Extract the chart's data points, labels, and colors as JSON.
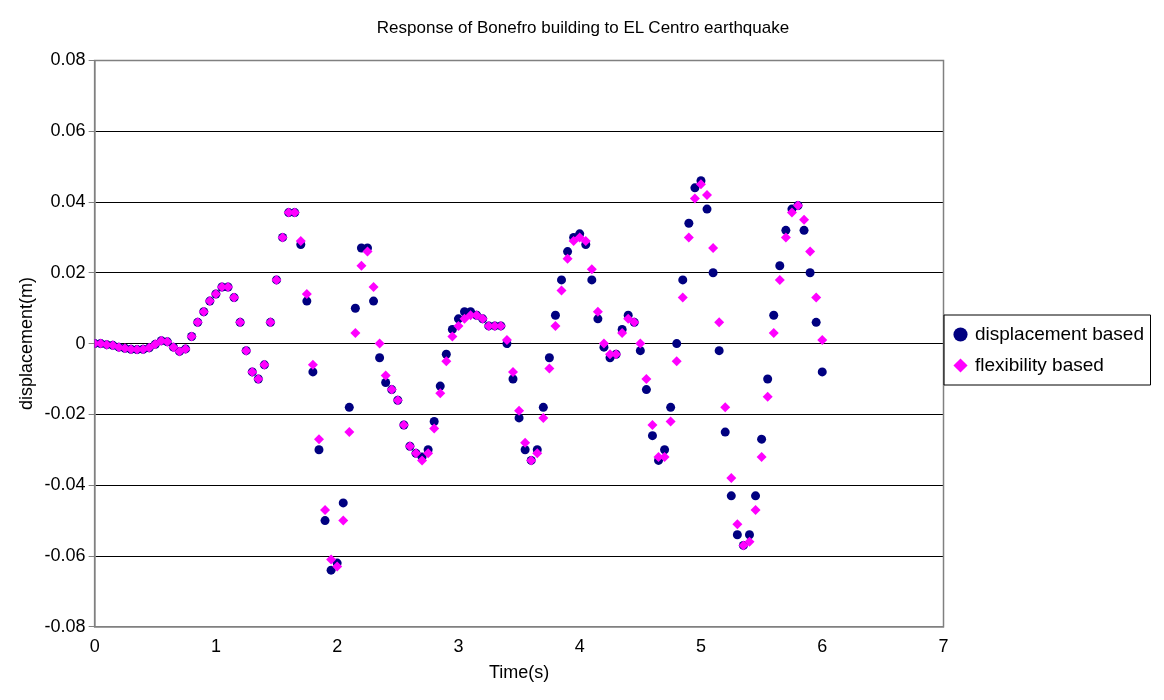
{
  "chart_data": {
    "type": "scatter",
    "title": "Response of Bonefro building to EL Centro earthquake",
    "xlabel": "Time(s)",
    "ylabel": "displacement(m)",
    "x": [
      0,
      0.05,
      0.1,
      0.15,
      0.2,
      0.25,
      0.3,
      0.35,
      0.4,
      0.45,
      0.5,
      0.55,
      0.6,
      0.65,
      0.7,
      0.75,
      0.8,
      0.85,
      0.9,
      0.95,
      1,
      1.05,
      1.1,
      1.15,
      1.2,
      1.25,
      1.3,
      1.35,
      1.4,
      1.45,
      1.5,
      1.55,
      1.6,
      1.65,
      1.7,
      1.75,
      1.8,
      1.85,
      1.9,
      1.95,
      2,
      2.05,
      2.1,
      2.15,
      2.2,
      2.25,
      2.3,
      2.35,
      2.4,
      2.45,
      2.5,
      2.55,
      2.6,
      2.65,
      2.7,
      2.75,
      2.8,
      2.85,
      2.9,
      2.95,
      3,
      3.05,
      3.1,
      3.15,
      3.2,
      3.25,
      3.3,
      3.35,
      3.4,
      3.45,
      3.5,
      3.55,
      3.6,
      3.65,
      3.7,
      3.75,
      3.8,
      3.85,
      3.9,
      3.95,
      4,
      4.05,
      4.1,
      4.15,
      4.2,
      4.25,
      4.3,
      4.35,
      4.4,
      4.45,
      4.5,
      4.55,
      4.6,
      4.65,
      4.7,
      4.75,
      4.8,
      4.85,
      4.9,
      4.95,
      5,
      5.05,
      5.1,
      5.15,
      5.2,
      5.25,
      5.3,
      5.35,
      5.4,
      5.45,
      5.5,
      5.55,
      5.6,
      5.65,
      5.7,
      5.75,
      5.8,
      5.85,
      5.9,
      5.95,
      6
    ],
    "series": [
      {
        "name": "displacement based",
        "color": "#000080",
        "marker": "circle",
        "values": [
          0,
          0,
          -0.0003,
          -0.0005,
          -0.001,
          -0.0013,
          -0.0016,
          -0.0017,
          -0.0016,
          -0.0012,
          -0.0002,
          0.0008,
          0.0005,
          -0.001,
          -0.0022,
          -0.0015,
          0.002,
          0.006,
          0.009,
          0.012,
          0.014,
          0.016,
          0.016,
          0.013,
          0.006,
          -0.002,
          -0.008,
          -0.01,
          -0.006,
          0.006,
          0.018,
          0.03,
          0.037,
          0.037,
          0.028,
          0.012,
          -0.008,
          -0.03,
          -0.05,
          -0.064,
          -0.062,
          -0.045,
          -0.018,
          0.01,
          0.027,
          0.027,
          0.012,
          -0.004,
          -0.011,
          -0.013,
          -0.016,
          -0.023,
          -0.029,
          -0.031,
          -0.032,
          -0.03,
          -0.022,
          -0.012,
          -0.003,
          0.004,
          0.007,
          0.009,
          0.009,
          0.008,
          0.007,
          0.005,
          0.005,
          0.005,
          0,
          -0.01,
          -0.021,
          -0.03,
          -0.033,
          -0.03,
          -0.018,
          -0.004,
          0.008,
          0.018,
          0.026,
          0.03,
          0.031,
          0.028,
          0.018,
          0.007,
          -0.001,
          -0.004,
          -0.003,
          0.004,
          0.008,
          0.006,
          -0.002,
          -0.013,
          -0.026,
          -0.033,
          -0.03,
          -0.018,
          0,
          0.018,
          0.034,
          0.044,
          0.046,
          0.038,
          0.02,
          -0.002,
          -0.025,
          -0.043,
          -0.054,
          -0.057,
          -0.054,
          -0.043,
          -0.027,
          -0.01,
          0.008,
          0.022,
          0.032,
          0.038,
          0.039,
          0.032,
          0.02,
          0.006,
          -0.008
        ]
      },
      {
        "name": "flexibility based",
        "color": "#ff00ff",
        "marker": "diamond",
        "values": [
          0,
          0,
          -0.0003,
          -0.0005,
          -0.001,
          -0.0013,
          -0.0016,
          -0.0017,
          -0.0016,
          -0.0012,
          -0.0002,
          0.0008,
          0.0005,
          -0.001,
          -0.0022,
          -0.0015,
          0.002,
          0.006,
          0.009,
          0.012,
          0.014,
          0.016,
          0.016,
          0.013,
          0.006,
          -0.002,
          -0.008,
          -0.01,
          -0.006,
          0.006,
          0.018,
          0.03,
          0.037,
          0.037,
          0.029,
          0.014,
          -0.006,
          -0.027,
          -0.047,
          -0.061,
          -0.063,
          -0.05,
          -0.025,
          0.003,
          0.022,
          0.026,
          0.016,
          0,
          -0.009,
          -0.013,
          -0.016,
          -0.023,
          -0.029,
          -0.031,
          -0.033,
          -0.031,
          -0.024,
          -0.014,
          -0.005,
          0.002,
          0.005,
          0.007,
          0.008,
          0.008,
          0.007,
          0.005,
          0.005,
          0.005,
          0.001,
          -0.008,
          -0.019,
          -0.028,
          -0.033,
          -0.031,
          -0.021,
          -0.007,
          0.005,
          0.015,
          0.024,
          0.029,
          0.03,
          0.029,
          0.021,
          0.009,
          0,
          -0.003,
          -0.003,
          0.003,
          0.007,
          0.006,
          0,
          -0.01,
          -0.023,
          -0.032,
          -0.032,
          -0.022,
          -0.005,
          0.013,
          0.03,
          0.041,
          0.045,
          0.042,
          0.027,
          0.006,
          -0.018,
          -0.038,
          -0.051,
          -0.057,
          -0.056,
          -0.047,
          -0.032,
          -0.015,
          0.003,
          0.018,
          0.03,
          0.037,
          0.039,
          0.035,
          0.026,
          0.013,
          0.001
        ]
      }
    ],
    "xlim": [
      0,
      7
    ],
    "xticks": [
      0,
      1,
      2,
      3,
      4,
      5,
      6,
      7
    ],
    "ylim": [
      -0.08,
      0.08
    ],
    "yticks": [
      -0.08,
      -0.06,
      -0.04,
      -0.02,
      0,
      0.02,
      0.04,
      0.06,
      0.08
    ],
    "grid": "y",
    "legend": "right"
  }
}
